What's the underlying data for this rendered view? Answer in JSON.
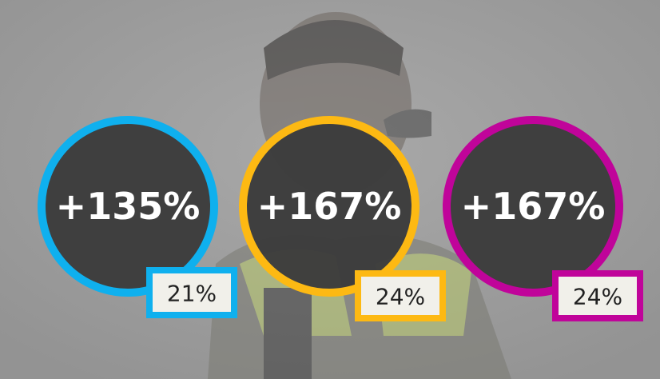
{
  "items": [
    {
      "value": "+135%",
      "badge": "21%",
      "color": "#0fb0ee"
    },
    {
      "value": "+167%",
      "badge": "24%",
      "color": "#fdb913"
    },
    {
      "value": "+167%",
      "badge": "24%",
      "color": "#c0049a"
    }
  ]
}
